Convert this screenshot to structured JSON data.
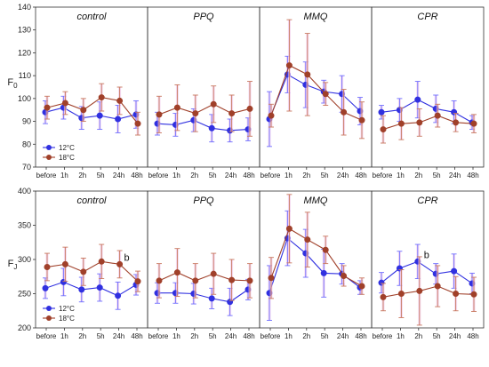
{
  "figure": {
    "categories": [
      "before",
      "1h",
      "2h",
      "5h",
      "24h",
      "48h"
    ],
    "series_colors": {
      "12°C": "#3030e0",
      "18°C": "#a0402a"
    },
    "error_bar_colors": {
      "12°C": "#6f6fff",
      "18°C": "#c8785e"
    },
    "legend_labels": [
      "12°C",
      "18°C"
    ]
  },
  "chart_data": [
    {
      "type": "line",
      "row": "F0",
      "panel": "control",
      "title": "control",
      "ylabel": "F0",
      "ylim": [
        70,
        140
      ],
      "yticks": [
        70,
        80,
        90,
        100,
        110,
        120,
        130,
        140
      ],
      "categories": [
        "before",
        "1h",
        "2h",
        "5h",
        "24h",
        "48h"
      ],
      "series": [
        {
          "name": "12°C",
          "values": [
            94,
            96,
            91.5,
            92.5,
            91,
            93
          ],
          "err": [
            5,
            5,
            5,
            6,
            6,
            6
          ]
        },
        {
          "name": "18°C",
          "values": [
            96,
            98,
            95,
            100.5,
            99,
            89
          ],
          "err": [
            5,
            5,
            5,
            6,
            6,
            5
          ]
        }
      ],
      "legend": "bottom-left",
      "annotation": null
    },
    {
      "type": "line",
      "row": "F0",
      "panel": "PPQ",
      "title": "PPQ",
      "ylim": [
        70,
        140
      ],
      "categories": [
        "before",
        "1h",
        "2h",
        "5h",
        "24h",
        "48h"
      ],
      "series": [
        {
          "name": "12°C",
          "values": [
            89,
            88.5,
            90.5,
            87,
            86,
            86.5
          ],
          "err": [
            5,
            5,
            5,
            6,
            5,
            5
          ]
        },
        {
          "name": "18°C",
          "values": [
            93,
            96,
            93.5,
            97.5,
            93.5,
            95.5
          ],
          "err": [
            8,
            10,
            8,
            8,
            8,
            12
          ]
        }
      ]
    },
    {
      "type": "line",
      "row": "F0",
      "panel": "MMQ",
      "title": "MMQ",
      "ylim": [
        70,
        140
      ],
      "categories": [
        "before",
        "1h",
        "2h",
        "5h",
        "24h",
        "48h"
      ],
      "series": [
        {
          "name": "12°C",
          "values": [
            91,
            110.5,
            106,
            103,
            102,
            94.5
          ],
          "err": [
            12,
            8,
            10,
            5,
            8,
            6
          ]
        },
        {
          "name": "18°C",
          "values": [
            92.5,
            114.5,
            110.5,
            102,
            94,
            90.5
          ],
          "err": [
            5,
            20,
            18,
            5,
            10,
            8
          ]
        }
      ]
    },
    {
      "type": "line",
      "row": "F0",
      "panel": "CPR",
      "title": "CPR",
      "ylim": [
        70,
        140
      ],
      "categories": [
        "before",
        "1h",
        "2h",
        "5h",
        "24h",
        "48h"
      ],
      "series": [
        {
          "name": "12°C",
          "values": [
            94,
            95,
            99.5,
            95.5,
            94,
            89.5
          ],
          "err": [
            3,
            5,
            8,
            6,
            5,
            3
          ]
        },
        {
          "name": "18°C",
          "values": [
            86.5,
            89,
            89.5,
            92.5,
            89.5,
            89
          ],
          "err": [
            6,
            7,
            6,
            5,
            4,
            4
          ]
        }
      ]
    },
    {
      "type": "line",
      "row": "FJ",
      "panel": "control",
      "title": "control",
      "ylabel": "FJ",
      "ylim": [
        200,
        400
      ],
      "yticks": [
        200,
        250,
        300,
        350,
        400
      ],
      "categories": [
        "before",
        "1h",
        "2h",
        "5h",
        "24h",
        "48h"
      ],
      "series": [
        {
          "name": "12°C",
          "values": [
            258,
            267,
            256,
            259,
            247,
            263
          ],
          "err": [
            15,
            20,
            18,
            20,
            20,
            15
          ]
        },
        {
          "name": "18°C",
          "values": [
            289,
            293,
            282,
            297,
            293,
            268
          ],
          "err": [
            20,
            25,
            20,
            25,
            20,
            15
          ]
        }
      ],
      "legend": "bottom-left",
      "annotation": {
        "series": "18°C",
        "index": 4,
        "text": "b"
      }
    },
    {
      "type": "line",
      "row": "FJ",
      "panel": "PPQ",
      "title": "PPQ",
      "ylim": [
        200,
        400
      ],
      "categories": [
        "before",
        "1h",
        "2h",
        "5h",
        "24h",
        "48h"
      ],
      "series": [
        {
          "name": "12°C",
          "values": [
            251,
            251,
            250,
            243,
            238,
            256
          ],
          "err": [
            15,
            15,
            15,
            15,
            20,
            15
          ]
        },
        {
          "name": "18°C",
          "values": [
            269,
            281,
            269,
            279,
            270,
            269
          ],
          "err": [
            25,
            35,
            25,
            30,
            30,
            25
          ]
        }
      ]
    },
    {
      "type": "line",
      "row": "FJ",
      "panel": "MMQ",
      "title": "MMQ",
      "ylim": [
        200,
        400
      ],
      "categories": [
        "before",
        "1h",
        "2h",
        "5h",
        "24h",
        "48h"
      ],
      "series": [
        {
          "name": "12°C",
          "values": [
            251,
            331,
            309,
            280,
            279,
            259
          ],
          "err": [
            40,
            40,
            35,
            35,
            15,
            10
          ]
        },
        {
          "name": "18°C",
          "values": [
            273,
            345,
            329,
            314,
            276,
            261
          ],
          "err": [
            30,
            50,
            40,
            20,
            15,
            12
          ]
        }
      ]
    },
    {
      "type": "line",
      "row": "FJ",
      "panel": "CPR",
      "title": "CPR",
      "ylim": [
        200,
        400
      ],
      "categories": [
        "before",
        "1h",
        "2h",
        "5h",
        "24h",
        "48h"
      ],
      "series": [
        {
          "name": "12°C",
          "values": [
            266,
            287,
            297,
            279,
            283,
            265
          ],
          "err": [
            15,
            25,
            25,
            15,
            25,
            15
          ]
        },
        {
          "name": "18°C",
          "values": [
            245,
            250,
            254,
            261,
            250,
            249
          ],
          "err": [
            20,
            35,
            50,
            30,
            25,
            25
          ]
        }
      ],
      "annotation": {
        "series": "12°C",
        "index": 2,
        "text": "b"
      }
    }
  ]
}
